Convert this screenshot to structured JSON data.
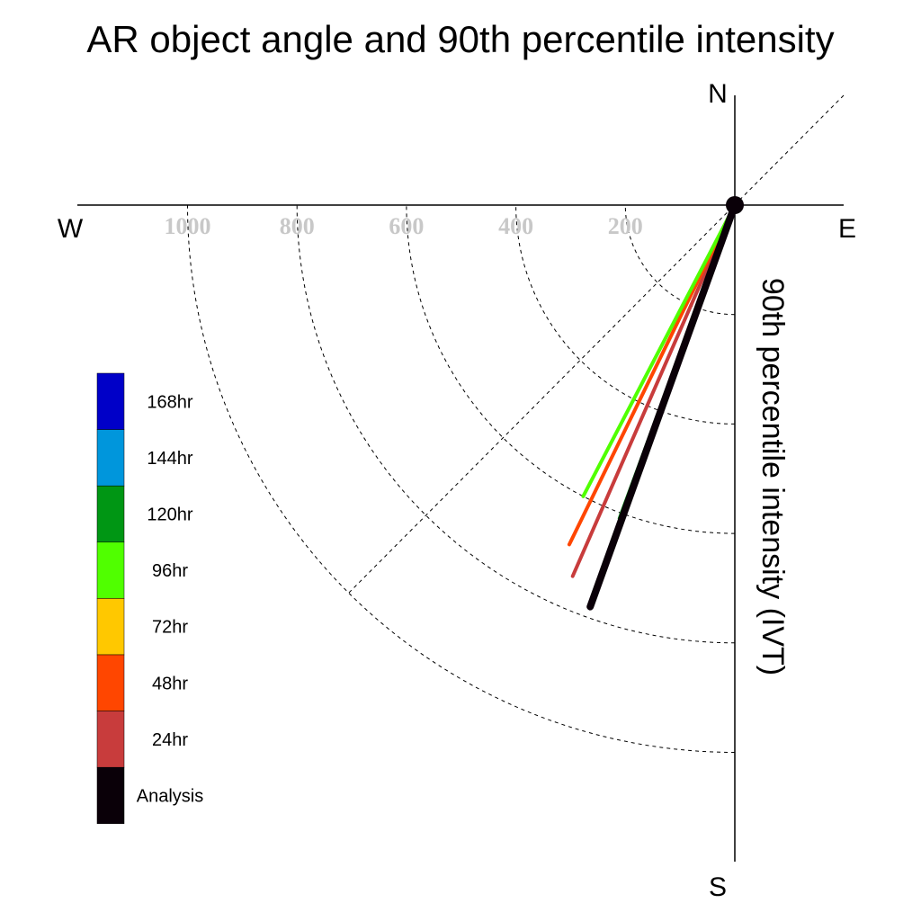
{
  "chart_data": {
    "type": "polar-vector",
    "title": "AR object angle and 90th percentile intensity",
    "radial_label": "90th percentile intensity (IVT)",
    "compass": {
      "north": "N",
      "east": "E",
      "south": "S",
      "west": "W"
    },
    "radial_ticks": [
      200,
      400,
      600,
      800,
      1000
    ],
    "radial_tick_labels": [
      "200",
      "400",
      "600",
      "800",
      "1000"
    ],
    "rmax": 1200,
    "grid": true,
    "legend_position": "left",
    "series": [
      {
        "name": "168hr",
        "color": "#0000c8",
        "angle_deg": 199.8,
        "intensity": 780
      },
      {
        "name": "144hr",
        "color": "#0096dc",
        "angle_deg": 200.0,
        "intensity": 780
      },
      {
        "name": "120hr",
        "color": "#009614",
        "angle_deg": 200.2,
        "intensity": 610
      },
      {
        "name": "96hr",
        "color": "#50ff00",
        "angle_deg": 207.5,
        "intensity": 600
      },
      {
        "name": "72hr",
        "color": "#ffc800",
        "angle_deg": 205.0,
        "intensity": 0
      },
      {
        "name": "48hr",
        "color": "#ff4600",
        "angle_deg": 206.0,
        "intensity": 690
      },
      {
        "name": "24hr",
        "color": "#c83c3c",
        "angle_deg": 203.6,
        "intensity": 740
      },
      {
        "name": "Analysis",
        "color": "#0a0008",
        "angle_deg": 199.8,
        "intensity": 780
      }
    ]
  }
}
